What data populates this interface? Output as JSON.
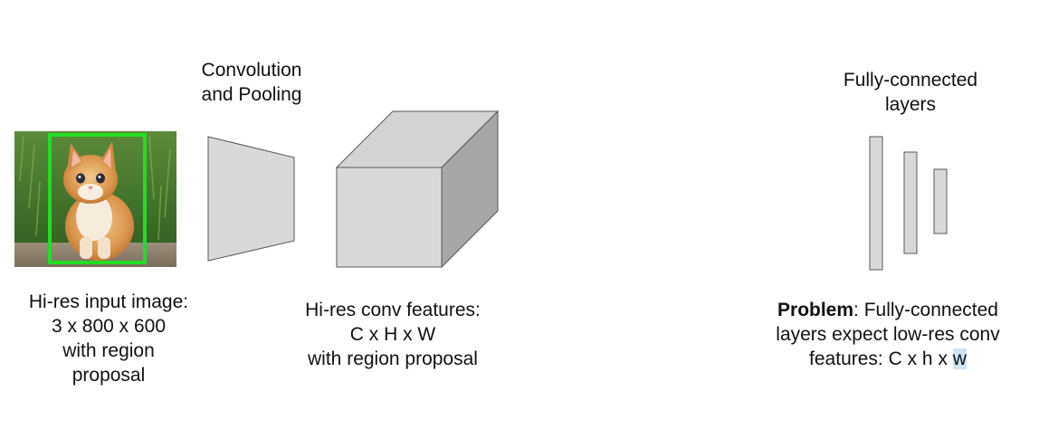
{
  "input": {
    "caption_lines": [
      "Hi-res input image:",
      "3 x 800 x 600",
      "with region",
      "proposal"
    ],
    "box_color": "#22dd22"
  },
  "conv": {
    "label_lines": [
      "Convolution",
      "and Pooling"
    ]
  },
  "features": {
    "caption_lines": [
      "Hi-res conv features:",
      "C x H x W",
      "with region proposal"
    ]
  },
  "fc": {
    "label_lines": [
      "Fully-connected",
      "layers"
    ]
  },
  "problem": {
    "bold": "Problem",
    "rest": ": Fully-connected",
    "line2": "layers expect low-res conv",
    "line3_pre": "features: C x h x ",
    "line3_hl": "w"
  },
  "colors": {
    "shape_fill": "#d9d9d9",
    "shape_top": "#d4d4d4",
    "shape_side": "#a6a6a6",
    "shape_stroke": "#595959"
  }
}
